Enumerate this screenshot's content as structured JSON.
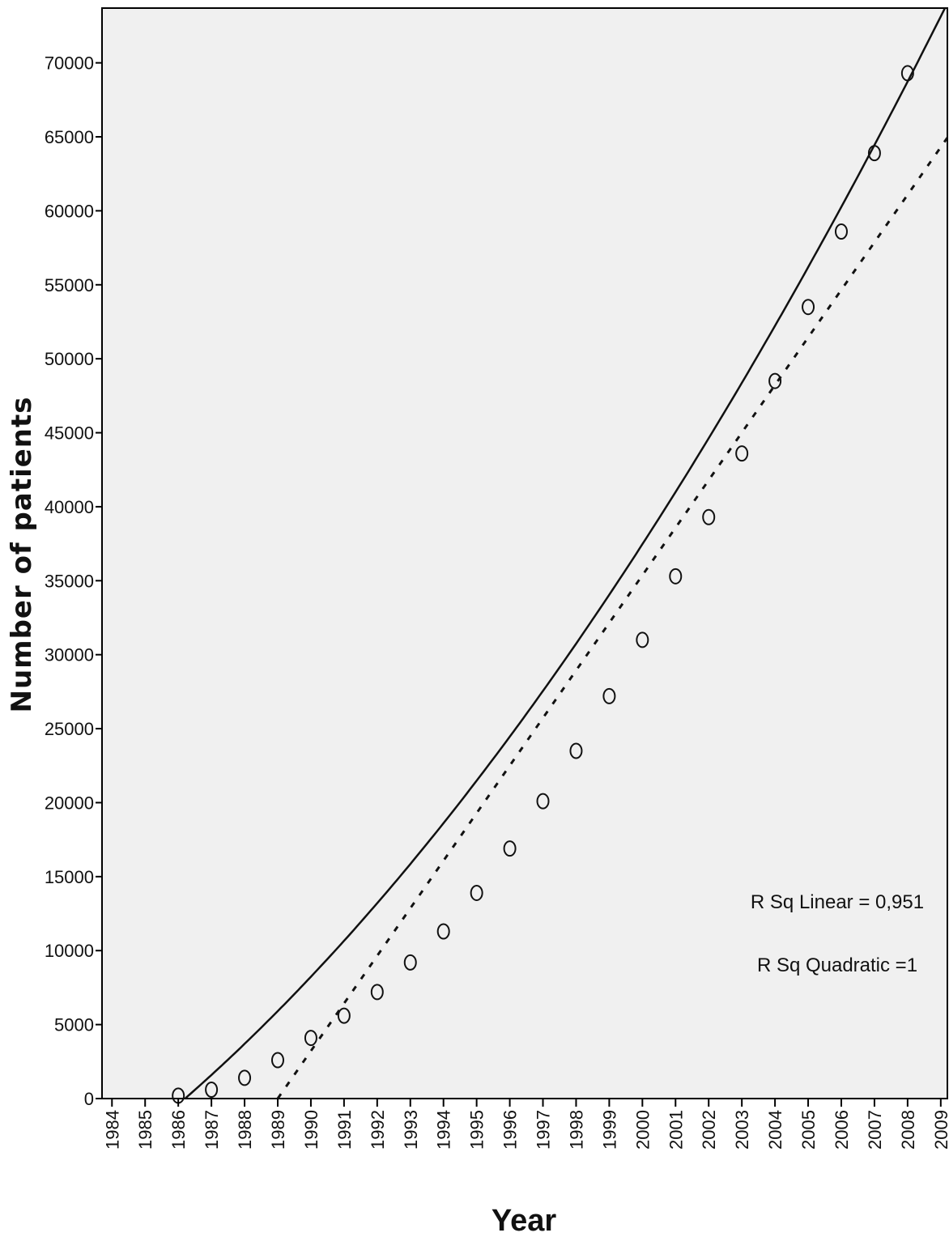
{
  "chart_data": {
    "type": "scatter",
    "xlabel": "Year",
    "ylabel": "Number of patients",
    "xlim": [
      1983.7,
      2009.2
    ],
    "ylim": [
      0,
      73700
    ],
    "x_ticks": [
      1984,
      1985,
      1986,
      1987,
      1988,
      1989,
      1990,
      1991,
      1992,
      1993,
      1994,
      1995,
      1996,
      1997,
      1998,
      1999,
      2000,
      2001,
      2002,
      2003,
      2004,
      2005,
      2006,
      2007,
      2008,
      2009
    ],
    "y_ticks": [
      0,
      5000,
      10000,
      15000,
      20000,
      25000,
      30000,
      35000,
      40000,
      45000,
      50000,
      55000,
      60000,
      65000,
      70000
    ],
    "grid": false,
    "points": {
      "x": [
        1986,
        1987,
        1988,
        1989,
        1990,
        1991,
        1992,
        1993,
        1994,
        1995,
        1996,
        1997,
        1998,
        1999,
        2000,
        2001,
        2002,
        2003,
        2004,
        2005,
        2006,
        2007,
        2008
      ],
      "y": [
        200,
        600,
        1400,
        2600,
        4100,
        5600,
        7200,
        9200,
        11300,
        13900,
        16900,
        20100,
        23500,
        27200,
        31000,
        35300,
        39300,
        43600,
        48500,
        53500,
        58600,
        63900,
        69300
      ]
    },
    "fits": [
      {
        "type": "linear",
        "style": "dotted",
        "coefficients": {
          "intercept_year": 1989,
          "slope": 3215
        }
      },
      {
        "type": "quadratic",
        "style": "solid",
        "coefficients": {
          "x0": 1986,
          "a": 54.7,
          "b": 1939,
          "c": -400
        }
      }
    ],
    "annotations": [
      "R Sq Linear = 0,951",
      "R Sq Quadratic =1"
    ]
  }
}
